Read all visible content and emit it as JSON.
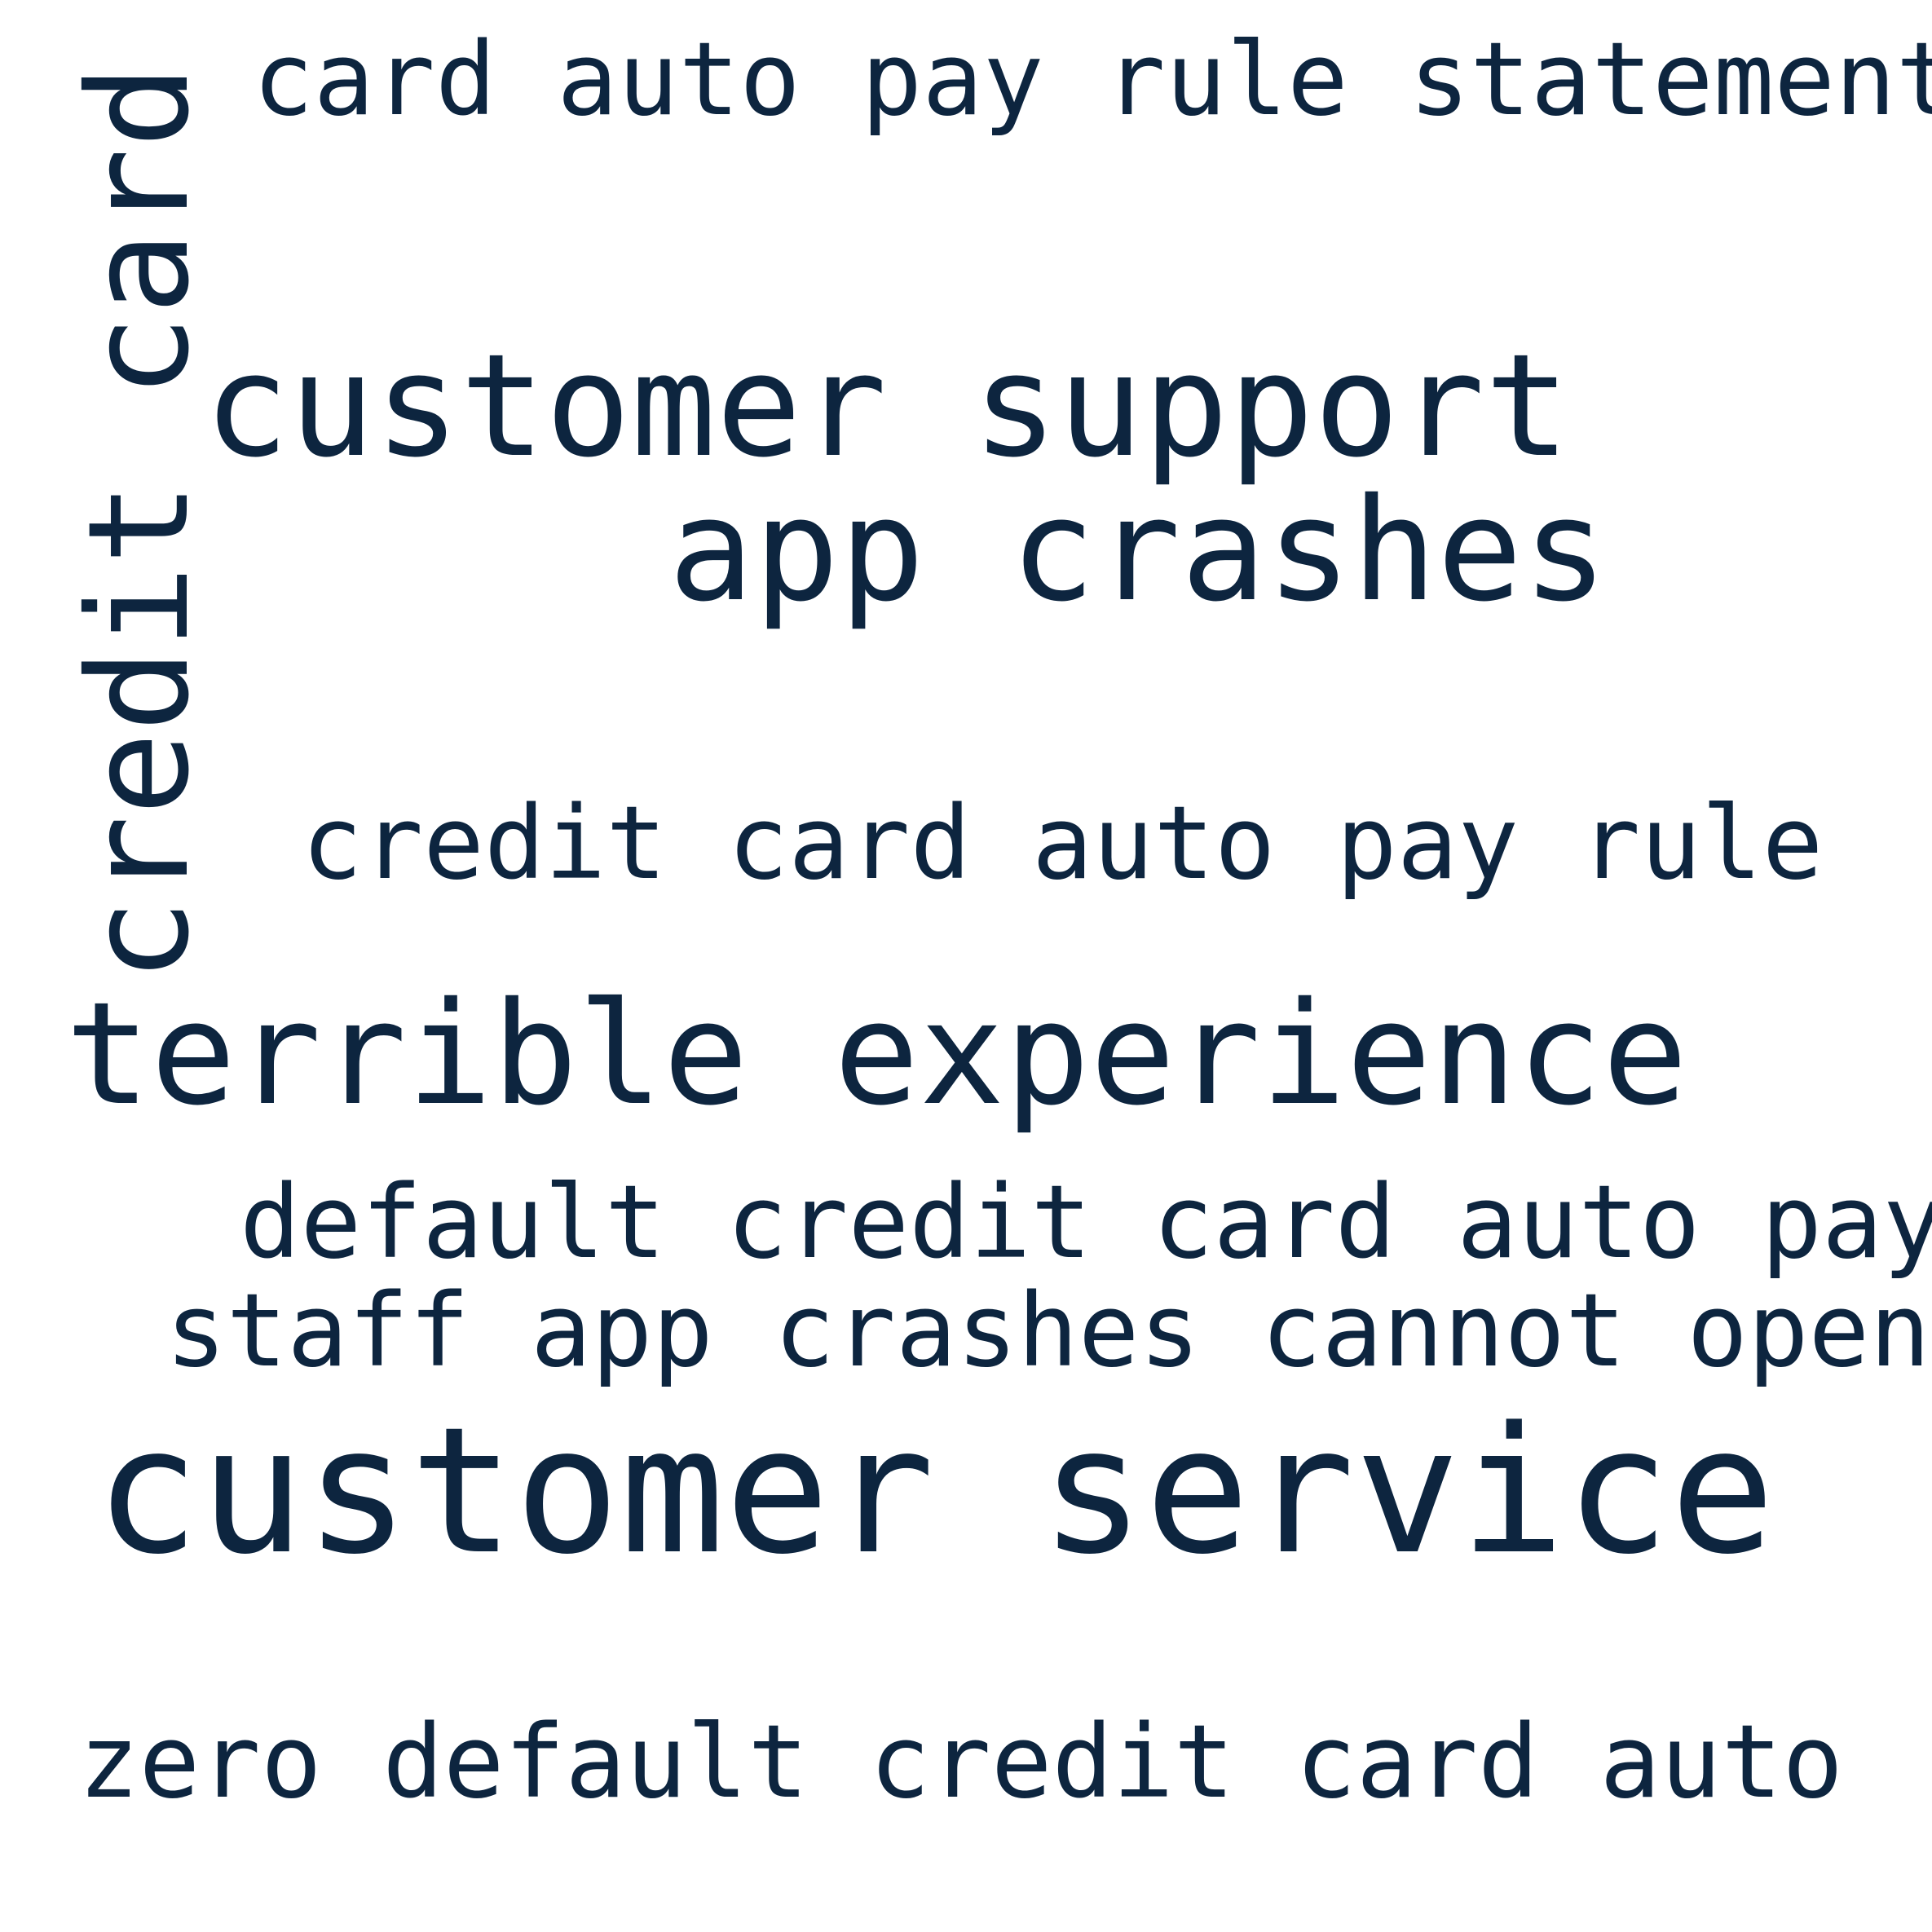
{
  "word_cloud": {
    "text_color": "#0d253f",
    "background_color": "#ffffff",
    "phrases": [
      {
        "text": "card auto pay rule statement",
        "orientation": "horizontal"
      },
      {
        "text": "credit card",
        "orientation": "vertical"
      },
      {
        "text": "customer support",
        "orientation": "horizontal"
      },
      {
        "text": "app crashes",
        "orientation": "horizontal"
      },
      {
        "text": "credit card auto pay rule",
        "orientation": "horizontal"
      },
      {
        "text": "terrible experience",
        "orientation": "horizontal"
      },
      {
        "text": "default credit card auto pay",
        "orientation": "horizontal"
      },
      {
        "text": "staff app crashes cannot open",
        "orientation": "horizontal"
      },
      {
        "text": "customer service",
        "orientation": "horizontal"
      },
      {
        "text": "zero default credit card auto",
        "orientation": "horizontal"
      }
    ]
  }
}
